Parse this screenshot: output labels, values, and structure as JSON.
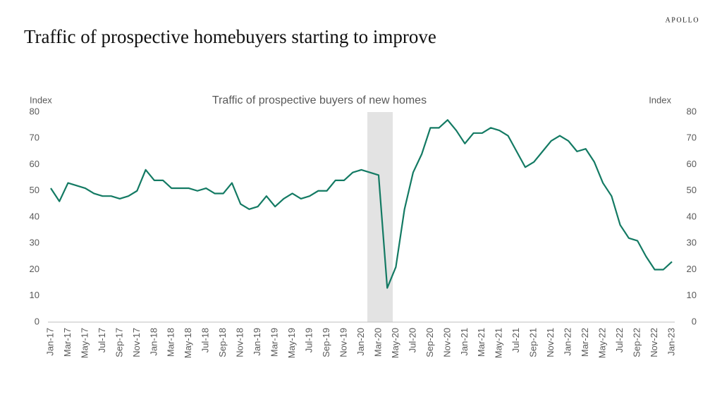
{
  "brand": "APOLLO",
  "chart_data": {
    "type": "line",
    "title": "Traffic of prospective homebuyers starting to improve",
    "subtitle": "Traffic of prospective buyers of new homes",
    "ylabel": "Index",
    "y2label": "Index",
    "categories": [
      "Jan-17",
      null,
      "Mar-17",
      null,
      "May-17",
      null,
      "Jul-17",
      null,
      "Sep-17",
      null,
      "Nov-17",
      null,
      "Jan-18",
      null,
      "Mar-18",
      null,
      "May-18",
      null,
      "Jul-18",
      null,
      "Sep-18",
      null,
      "Nov-18",
      null,
      "Jan-19",
      null,
      "Mar-19",
      null,
      "May-19",
      null,
      "Jul-19",
      null,
      "Sep-19",
      null,
      "Nov-19",
      null,
      "Jan-20",
      null,
      "Mar-20",
      null,
      "May-20",
      null,
      "Jul-20",
      null,
      "Sep-20",
      null,
      "Nov-20",
      null,
      "Jan-21",
      null,
      "Mar-21",
      null,
      "May-21",
      null,
      "Jul-21",
      null,
      "Sep-21",
      null,
      "Nov-21",
      null,
      "Jan-22",
      null,
      "Mar-22",
      null,
      "May-22",
      null,
      "Jul-22",
      null,
      "Sep-22",
      null,
      "Nov-22",
      null,
      "Jan-23"
    ],
    "series": [
      {
        "name": "Traffic of prospective buyers of new homes",
        "color": "#137a63",
        "values": [
          51,
          46,
          53,
          52,
          51,
          49,
          48,
          48,
          47,
          48,
          50,
          58,
          54,
          54,
          51,
          51,
          51,
          50,
          51,
          49,
          49,
          53,
          45,
          43,
          44,
          48,
          44,
          47,
          49,
          47,
          48,
          50,
          50,
          54,
          54,
          57,
          58,
          57,
          56,
          13,
          21,
          43,
          57,
          64,
          74,
          74,
          77,
          73,
          68,
          72,
          72,
          74,
          73,
          71,
          65,
          59,
          61,
          65,
          69,
          71,
          69,
          65,
          66,
          61,
          53,
          48,
          37,
          32,
          31,
          25,
          20,
          20,
          23
        ]
      }
    ],
    "ylim": [
      0,
      80
    ],
    "yticks": [
      0,
      10,
      20,
      30,
      40,
      50,
      60,
      70,
      80
    ],
    "y2lim": [
      0,
      80
    ],
    "y2ticks": [
      0,
      10,
      20,
      30,
      40,
      50,
      60,
      70,
      80
    ],
    "grid": false
  }
}
